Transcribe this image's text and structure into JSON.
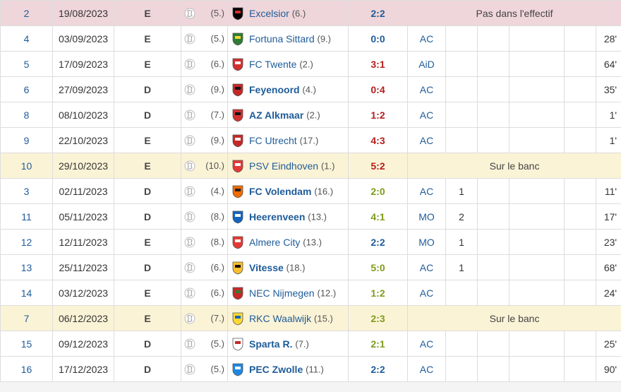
{
  "rows": [
    {
      "matchday": "2",
      "date": "19/08/2023",
      "venue": "E",
      "ajax_pos": "(5.)",
      "team": "Excelsior",
      "team_bold": false,
      "opp_pos": "(6.)",
      "result": "2:2",
      "res_class": "draw",
      "status": "Pas dans l'effectif",
      "highlight": "red",
      "crest_color": "#000000",
      "crest_accent": "#d32f2f"
    },
    {
      "matchday": "4",
      "date": "03/09/2023",
      "venue": "E",
      "ajax_pos": "(5.)",
      "team": "Fortuna Sittard",
      "team_bold": false,
      "opp_pos": "(9.)",
      "result": "0:0",
      "res_class": "draw",
      "role": "AC",
      "goals": "",
      "assists": "",
      "minutes": "28'",
      "crest_color": "#2e7d32",
      "crest_accent": "#fdd835"
    },
    {
      "matchday": "5",
      "date": "17/09/2023",
      "venue": "E",
      "ajax_pos": "(6.)",
      "team": "FC Twente",
      "team_bold": false,
      "opp_pos": "(2.)",
      "result": "3:1",
      "res_class": "loss",
      "role": "AiD",
      "goals": "",
      "assists": "",
      "minutes": "64'",
      "crest_color": "#d32f2f",
      "crest_accent": "#ffffff"
    },
    {
      "matchday": "6",
      "date": "27/09/2023",
      "venue": "D",
      "ajax_pos": "(9.)",
      "team": "Feyenoord",
      "team_bold": true,
      "opp_pos": "(4.)",
      "result": "0:4",
      "res_class": "loss",
      "role": "AC",
      "goals": "",
      "assists": "",
      "minutes": "35'",
      "crest_color": "#c62828",
      "crest_accent": "#111111"
    },
    {
      "matchday": "8",
      "date": "08/10/2023",
      "venue": "D",
      "ajax_pos": "(7.)",
      "team": "AZ Alkmaar",
      "team_bold": true,
      "opp_pos": "(2.)",
      "result": "1:2",
      "res_class": "loss",
      "role": "AC",
      "goals": "",
      "assists": "",
      "minutes": "1'",
      "crest_color": "#d32f2f",
      "crest_accent": "#111111"
    },
    {
      "matchday": "9",
      "date": "22/10/2023",
      "venue": "E",
      "ajax_pos": "(9.)",
      "team": "FC Utrecht",
      "team_bold": false,
      "opp_pos": "(17.)",
      "result": "4:3",
      "res_class": "loss",
      "role": "AC",
      "goals": "",
      "assists": "",
      "minutes": "1'",
      "crest_color": "#c62828",
      "crest_accent": "#ffffff"
    },
    {
      "matchday": "10",
      "date": "29/10/2023",
      "venue": "E",
      "ajax_pos": "(10.)",
      "team": "PSV Eindhoven",
      "team_bold": false,
      "opp_pos": "(1.)",
      "result": "5:2",
      "res_class": "loss",
      "status": "Sur le banc",
      "highlight": "yel",
      "crest_color": "#e53935",
      "crest_accent": "#ffffff"
    },
    {
      "matchday": "3",
      "date": "02/11/2023",
      "venue": "D",
      "ajax_pos": "(4.)",
      "team": "FC Volendam",
      "team_bold": true,
      "opp_pos": "(16.)",
      "result": "2:0",
      "res_class": "win",
      "role": "AC",
      "goals": "1",
      "assists": "",
      "minutes": "11'",
      "crest_color": "#ef6c00",
      "crest_accent": "#212121"
    },
    {
      "matchday": "11",
      "date": "05/11/2023",
      "venue": "D",
      "ajax_pos": "(8.)",
      "team": "Heerenveen",
      "team_bold": true,
      "opp_pos": "(13.)",
      "result": "4:1",
      "res_class": "win",
      "role": "MO",
      "goals": "2",
      "assists": "",
      "minutes": "17'",
      "crest_color": "#1565c0",
      "crest_accent": "#ffffff"
    },
    {
      "matchday": "12",
      "date": "12/11/2023",
      "venue": "E",
      "ajax_pos": "(8.)",
      "team": "Almere City",
      "team_bold": false,
      "opp_pos": "(13.)",
      "result": "2:2",
      "res_class": "draw",
      "role": "MO",
      "goals": "1",
      "assists": "",
      "minutes": "23'",
      "crest_color": "#e53935",
      "crest_accent": "#ffffff"
    },
    {
      "matchday": "13",
      "date": "25/11/2023",
      "venue": "D",
      "ajax_pos": "(6.)",
      "team": "Vitesse",
      "team_bold": true,
      "opp_pos": "(18.)",
      "result": "5:0",
      "res_class": "win",
      "role": "AC",
      "goals": "1",
      "assists": "",
      "minutes": "68'",
      "crest_color": "#fbc02d",
      "crest_accent": "#111111"
    },
    {
      "matchday": "14",
      "date": "03/12/2023",
      "venue": "E",
      "ajax_pos": "(6.)",
      "team": "NEC Nijmegen",
      "team_bold": false,
      "opp_pos": "(12.)",
      "result": "1:2",
      "res_class": "win",
      "role": "AC",
      "goals": "",
      "assists": "",
      "minutes": "24'",
      "crest_color": "#c62828",
      "crest_accent": "#2e7d32"
    },
    {
      "matchday": "7",
      "date": "06/12/2023",
      "venue": "E",
      "ajax_pos": "(7.)",
      "team": "RKC Waalwijk",
      "team_bold": false,
      "opp_pos": "(15.)",
      "result": "2:3",
      "res_class": "win",
      "status": "Sur le banc",
      "highlight": "yel",
      "crest_color": "#fdd835",
      "crest_accent": "#1565c0"
    },
    {
      "matchday": "15",
      "date": "09/12/2023",
      "venue": "D",
      "ajax_pos": "(5.)",
      "team": "Sparta R.",
      "team_bold": true,
      "opp_pos": "(7.)",
      "result": "2:1",
      "res_class": "win",
      "role": "AC",
      "goals": "",
      "assists": "",
      "minutes": "25'",
      "crest_color": "#ffffff",
      "crest_accent": "#c62828"
    },
    {
      "matchday": "16",
      "date": "17/12/2023",
      "venue": "D",
      "ajax_pos": "(5.)",
      "team": "PEC Zwolle",
      "team_bold": true,
      "opp_pos": "(11.)",
      "result": "2:2",
      "res_class": "draw",
      "role": "AC",
      "goals": "",
      "assists": "",
      "minutes": "90'",
      "crest_color": "#1e88e5",
      "crest_accent": "#ffffff"
    }
  ]
}
